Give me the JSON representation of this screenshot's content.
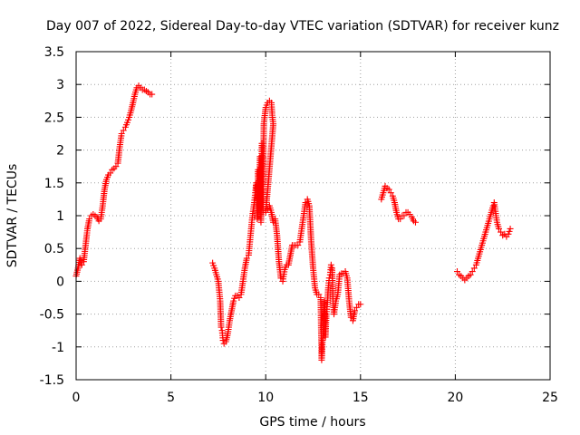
{
  "chart_data": {
    "type": "scatter",
    "title": "Day 007 of 2022, Sidereal Day-to-day VTEC variation (SDTVAR) for receiver kunz",
    "xlabel": "GPS time / hours",
    "ylabel": "SDTVAR / TECUs",
    "xlim": [
      0,
      25
    ],
    "ylim": [
      -1.5,
      3.5
    ],
    "xticks": [
      "0",
      "5",
      "10",
      "15",
      "20",
      "25"
    ],
    "yticks": [
      "-1.5",
      "-1",
      "-0.5",
      "0",
      "0.5",
      "1",
      "1.5",
      "2",
      "2.5",
      "3",
      "3.5"
    ],
    "grid": true,
    "marker": "plus",
    "color": "#ff0000",
    "series": [
      {
        "segments": [
          [
            [
              0.0,
              0.08
            ],
            [
              0.1,
              0.2
            ],
            [
              0.2,
              0.35
            ],
            [
              0.3,
              0.25
            ],
            [
              0.4,
              0.3
            ],
            [
              0.5,
              0.55
            ],
            [
              0.6,
              0.8
            ],
            [
              0.7,
              0.95
            ],
            [
              0.8,
              1.0
            ],
            [
              0.9,
              1.02
            ],
            [
              1.0,
              1.0
            ],
            [
              1.1,
              0.98
            ],
            [
              1.2,
              0.92
            ],
            [
              1.3,
              0.95
            ],
            [
              1.4,
              1.15
            ],
            [
              1.5,
              1.4
            ],
            [
              1.6,
              1.55
            ],
            [
              1.7,
              1.62
            ],
            [
              1.8,
              1.65
            ],
            [
              1.9,
              1.7
            ],
            [
              2.0,
              1.72
            ],
            [
              2.1,
              1.75
            ],
            [
              2.2,
              1.8
            ],
            [
              2.3,
              2.05
            ],
            [
              2.4,
              2.25
            ],
            [
              2.5,
              2.3
            ],
            [
              2.6,
              2.35
            ],
            [
              2.7,
              2.42
            ],
            [
              2.8,
              2.5
            ],
            [
              2.9,
              2.6
            ],
            [
              3.0,
              2.72
            ],
            [
              3.1,
              2.85
            ],
            [
              3.2,
              2.95
            ],
            [
              3.3,
              2.98
            ],
            [
              3.4,
              2.95
            ],
            [
              3.5,
              2.92
            ],
            [
              3.6,
              2.92
            ],
            [
              3.7,
              2.9
            ],
            [
              3.8,
              2.88
            ],
            [
              3.9,
              2.85
            ],
            [
              4.0,
              2.85
            ]
          ],
          [
            [
              7.2,
              0.28
            ],
            [
              7.3,
              0.2
            ],
            [
              7.4,
              0.1
            ],
            [
              7.5,
              0.0
            ],
            [
              7.6,
              -0.3
            ],
            [
              7.65,
              -0.7
            ],
            [
              7.7,
              -0.75
            ],
            [
              7.75,
              -0.9
            ],
            [
              7.8,
              -0.95
            ],
            [
              7.9,
              -0.92
            ],
            [
              8.0,
              -0.8
            ],
            [
              8.1,
              -0.6
            ],
            [
              8.2,
              -0.45
            ],
            [
              8.3,
              -0.3
            ],
            [
              8.4,
              -0.22
            ],
            [
              8.5,
              -0.22
            ],
            [
              8.6,
              -0.25
            ],
            [
              8.7,
              -0.2
            ],
            [
              8.8,
              0.0
            ],
            [
              8.9,
              0.2
            ],
            [
              9.0,
              0.35
            ],
            [
              9.1,
              0.4
            ],
            [
              9.2,
              0.7
            ],
            [
              9.3,
              1.0
            ],
            [
              9.4,
              1.2
            ],
            [
              9.45,
              1.35
            ],
            [
              9.5,
              1.5
            ],
            [
              9.55,
              0.95
            ],
            [
              9.6,
              1.7
            ],
            [
              9.65,
              1.1
            ],
            [
              9.7,
              1.9
            ],
            [
              9.75,
              0.9
            ],
            [
              9.8,
              2.1
            ],
            [
              9.85,
              1.05
            ],
            [
              9.9,
              2.4
            ],
            [
              10.0,
              2.65
            ],
            [
              10.1,
              2.72
            ],
            [
              10.2,
              2.75
            ],
            [
              10.3,
              2.72
            ],
            [
              10.35,
              2.5
            ],
            [
              10.4,
              2.4
            ],
            [
              10.0,
              1.05
            ],
            [
              10.1,
              1.1
            ],
            [
              10.2,
              1.15
            ],
            [
              10.3,
              1.05
            ],
            [
              10.4,
              0.9
            ],
            [
              10.5,
              0.95
            ],
            [
              10.6,
              0.7
            ],
            [
              10.7,
              0.3
            ],
            [
              10.8,
              0.05
            ],
            [
              10.9,
              0.0
            ],
            [
              11.0,
              0.18
            ],
            [
              11.1,
              0.25
            ],
            [
              11.2,
              0.25
            ],
            [
              11.3,
              0.4
            ],
            [
              11.4,
              0.55
            ],
            [
              11.5,
              0.55
            ],
            [
              11.6,
              0.55
            ],
            [
              11.7,
              0.55
            ],
            [
              11.8,
              0.6
            ],
            [
              11.9,
              0.8
            ],
            [
              12.0,
              1.0
            ],
            [
              12.1,
              1.2
            ],
            [
              12.2,
              1.25
            ],
            [
              12.3,
              1.15
            ],
            [
              12.4,
              0.6
            ],
            [
              12.5,
              0.2
            ],
            [
              12.6,
              -0.1
            ],
            [
              12.7,
              -0.2
            ],
            [
              12.8,
              -0.2
            ],
            [
              12.9,
              -0.25
            ],
            [
              12.95,
              -1.2
            ],
            [
              13.0,
              -0.9
            ],
            [
              13.05,
              -0.6
            ],
            [
              13.1,
              -0.3
            ],
            [
              13.15,
              -0.85
            ],
            [
              13.2,
              -0.5
            ],
            [
              13.25,
              -0.35
            ],
            [
              13.3,
              -0.1
            ],
            [
              13.35,
              0.05
            ],
            [
              13.4,
              0.1
            ],
            [
              13.45,
              0.25
            ],
            [
              13.5,
              0.2
            ],
            [
              13.55,
              -0.3
            ],
            [
              13.6,
              -0.5
            ],
            [
              13.7,
              -0.3
            ],
            [
              13.8,
              -0.2
            ],
            [
              13.9,
              0.1
            ],
            [
              14.0,
              0.12
            ],
            [
              14.1,
              0.12
            ],
            [
              14.2,
              0.15
            ],
            [
              14.3,
              0.05
            ],
            [
              14.4,
              -0.3
            ],
            [
              14.5,
              -0.55
            ],
            [
              14.6,
              -0.6
            ],
            [
              14.7,
              -0.45
            ],
            [
              14.8,
              -0.4
            ],
            [
              14.9,
              -0.35
            ],
            [
              15.0,
              -0.35
            ]
          ],
          [
            [
              16.1,
              1.25
            ],
            [
              16.2,
              1.35
            ],
            [
              16.3,
              1.45
            ],
            [
              16.4,
              1.42
            ],
            [
              16.5,
              1.4
            ],
            [
              16.6,
              1.35
            ],
            [
              16.7,
              1.3
            ],
            [
              16.8,
              1.2
            ],
            [
              16.9,
              1.05
            ],
            [
              17.0,
              0.95
            ],
            [
              17.1,
              0.95
            ],
            [
              17.2,
              1.0
            ],
            [
              17.3,
              1.0
            ],
            [
              17.4,
              1.05
            ],
            [
              17.5,
              1.05
            ],
            [
              17.6,
              1.02
            ],
            [
              17.7,
              0.98
            ],
            [
              17.8,
              0.92
            ],
            [
              17.9,
              0.9
            ]
          ],
          [
            [
              20.1,
              0.15
            ],
            [
              20.2,
              0.1
            ],
            [
              20.3,
              0.08
            ],
            [
              20.4,
              0.05
            ],
            [
              20.5,
              0.02
            ],
            [
              20.6,
              0.05
            ],
            [
              20.7,
              0.08
            ],
            [
              20.8,
              0.1
            ],
            [
              20.9,
              0.15
            ],
            [
              21.0,
              0.2
            ],
            [
              21.1,
              0.25
            ],
            [
              21.2,
              0.35
            ],
            [
              21.3,
              0.45
            ],
            [
              21.4,
              0.55
            ],
            [
              21.5,
              0.65
            ],
            [
              21.6,
              0.75
            ],
            [
              21.7,
              0.85
            ],
            [
              21.8,
              0.95
            ],
            [
              21.9,
              1.05
            ],
            [
              22.0,
              1.15
            ],
            [
              22.05,
              1.2
            ],
            [
              22.1,
              1.1
            ],
            [
              22.2,
              0.9
            ],
            [
              22.3,
              0.8
            ],
            [
              22.4,
              0.75
            ],
            [
              22.5,
              0.7
            ],
            [
              22.6,
              0.72
            ],
            [
              22.7,
              0.68
            ],
            [
              22.8,
              0.72
            ],
            [
              22.9,
              0.8
            ]
          ]
        ]
      }
    ]
  }
}
